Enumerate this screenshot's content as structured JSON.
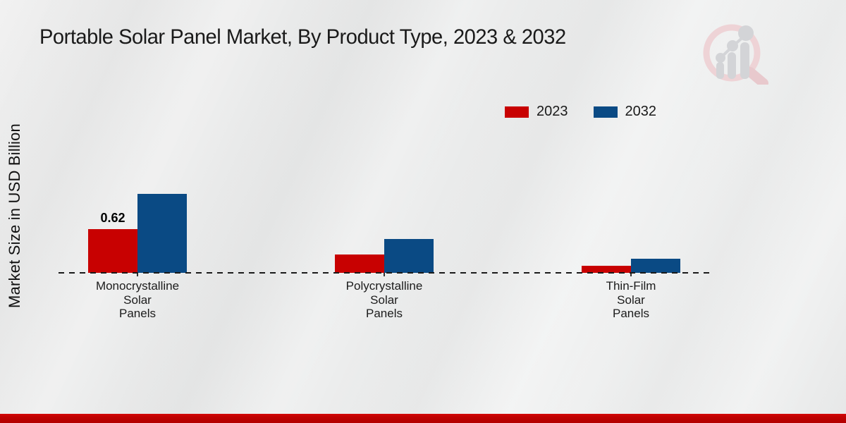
{
  "title": "Portable Solar Panel Market, By Product Type, 2023 & 2032",
  "y_axis_label": "Market Size in USD Billion",
  "legend": {
    "items": [
      {
        "label": "2023",
        "color": "#c80101"
      },
      {
        "label": "2032",
        "color": "#0a4a84"
      }
    ]
  },
  "chart_data": {
    "type": "bar",
    "title": "Portable Solar Panel Market, By Product Type, 2023 & 2032",
    "xlabel": "",
    "ylabel": "Market Size in USD Billion",
    "unit": "USD Billion",
    "categories": [
      {
        "id": "monocrystalline-solar-panels",
        "name": "Monocrystalline Solar Panels",
        "lines": [
          "Monocrystalline",
          "Solar",
          "Panels"
        ]
      },
      {
        "id": "polycrystalline-solar-panels",
        "name": "Polycrystalline Solar Panels",
        "lines": [
          "Polycrystalline",
          "Solar",
          "Panels"
        ]
      },
      {
        "id": "thin-film-solar-panels",
        "name": "Thin-Film Solar Panels",
        "lines": [
          "Thin-Film",
          "Solar",
          "Panels"
        ]
      }
    ],
    "series": [
      {
        "name": "2023",
        "color": "#c80101",
        "values": [
          0.62,
          0.26,
          0.1
        ]
      },
      {
        "name": "2032",
        "color": "#0a4a84",
        "values": [
          1.12,
          0.48,
          0.2
        ]
      }
    ],
    "data_labels": [
      {
        "series": "2023",
        "category_index": 0,
        "text": "0.62"
      }
    ],
    "ylim": [
      0,
      1.2
    ],
    "grid": false,
    "baseline_style": "dashed",
    "legend_position": "top-right"
  },
  "watermark": {
    "name": "market-research-future-logo"
  },
  "footer": {
    "band_color": "#bf0101"
  }
}
